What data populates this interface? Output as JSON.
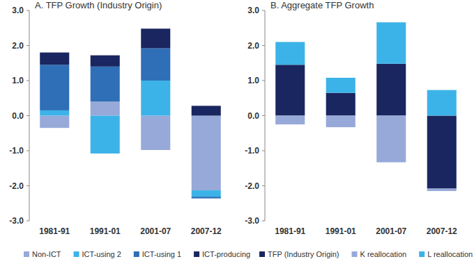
{
  "chart_data": [
    {
      "type": "bar",
      "title": "A. TFP Growth (Industry Origin)",
      "stacked": true,
      "legend": "bottom",
      "categories": [
        "1981-91",
        "1991-01",
        "2001-07",
        "2007-12"
      ],
      "series": [
        {
          "name": "Non-ICT",
          "color": "#97a9d9",
          "values": [
            -0.35,
            0.4,
            -0.98,
            -2.13
          ]
        },
        {
          "name": "ICT-using 2",
          "color": "#3cb3e8",
          "values": [
            0.15,
            -1.08,
            1.0,
            -0.18
          ]
        },
        {
          "name": "ICT-using 1",
          "color": "#2f6fb8",
          "values": [
            1.3,
            1.0,
            0.92,
            -0.05
          ]
        },
        {
          "name": "ICT-producing",
          "color": "#1a2660",
          "values": [
            0.35,
            0.32,
            0.56,
            0.28
          ]
        }
      ],
      "ylim": [
        -3,
        3
      ],
      "yticks": [
        {
          "value": -3,
          "label": "-3.0"
        },
        {
          "value": -2,
          "label": "-2.0"
        },
        {
          "value": -1,
          "label": "-1.0"
        },
        {
          "value": 0,
          "label": "0.0"
        },
        {
          "value": 1,
          "label": "1.0"
        },
        {
          "value": 2,
          "label": "2.0"
        },
        {
          "value": 3,
          "label": "3.0"
        }
      ],
      "grid": false
    },
    {
      "type": "bar",
      "title": "B. Aggregate TFP Growth",
      "stacked": true,
      "legend": "bottom",
      "categories": [
        "1981-91",
        "1991-01",
        "2001-07",
        "2007-12"
      ],
      "series": [
        {
          "name": "TFP (Industry Origin)",
          "color": "#1a2660",
          "values": [
            1.45,
            0.65,
            1.48,
            -2.08
          ]
        },
        {
          "name": "K reallocation",
          "color": "#97a9d9",
          "values": [
            -0.25,
            -0.33,
            -1.33,
            -0.07
          ]
        },
        {
          "name": "L reallocation",
          "color": "#3cb3e8",
          "values": [
            0.65,
            0.43,
            1.18,
            0.73
          ]
        }
      ],
      "ylim": [
        -3,
        3
      ],
      "yticks": [
        {
          "value": -3,
          "label": "-3.0"
        },
        {
          "value": -2,
          "label": "-2.0"
        },
        {
          "value": -1,
          "label": "-1.0"
        },
        {
          "value": 0,
          "label": "0.0"
        },
        {
          "value": 1,
          "label": "1.0"
        },
        {
          "value": 2,
          "label": "2.0"
        },
        {
          "value": 3,
          "label": "3.0"
        }
      ],
      "grid": false
    }
  ]
}
